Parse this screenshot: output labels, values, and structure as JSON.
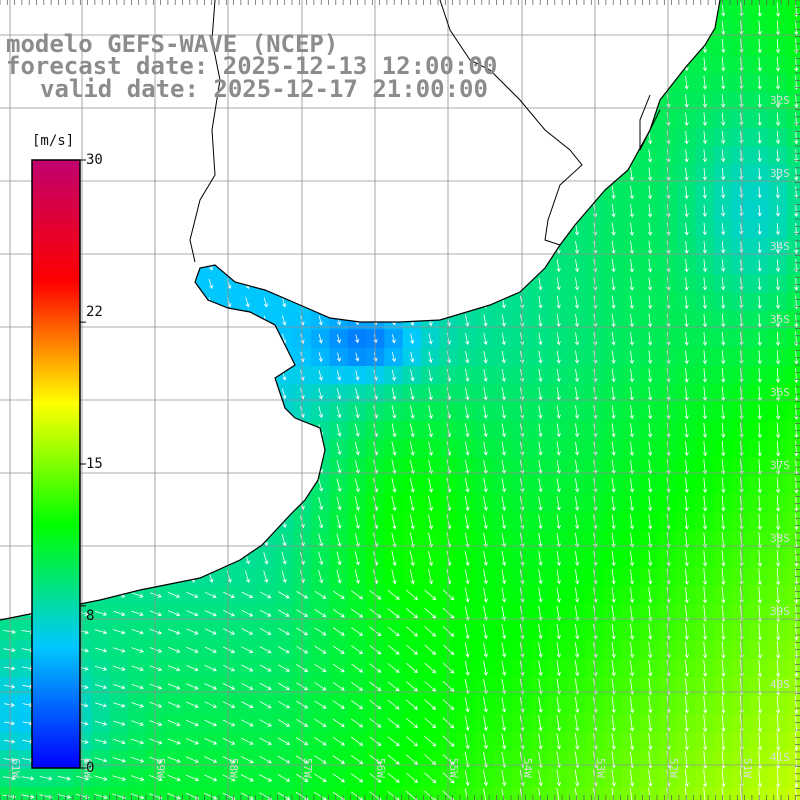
{
  "header": {
    "model": "modelo GEFS-WAVE (NCEP)",
    "forecast": "forecast date: 2025-12-13 12:00:00",
    "valid": "valid date: 2025-12-17 21:00:00"
  },
  "colorbar": {
    "unit": "[m/s]",
    "min": 0,
    "max": 30,
    "ticks": [
      "30",
      "22",
      "15",
      "8",
      "0"
    ],
    "tick_values": [
      30,
      22,
      15,
      8,
      0
    ],
    "stops": [
      "#0000ff",
      "#00c8ff",
      "#00ff00",
      "#ffff00",
      "#ff0000",
      "#c0006e"
    ]
  },
  "map": {
    "lon_range": [
      -61.5,
      -50.8
    ],
    "lat_range": [
      -41.5,
      -30.2
    ],
    "lat_labels": [
      "32S",
      "33S",
      "34S",
      "35S",
      "36S",
      "37S",
      "38S",
      "39S",
      "40S",
      "41S"
    ],
    "lon_labels": [
      "61W",
      "60W",
      "59W",
      "58W",
      "57W",
      "56W",
      "55W",
      "54W",
      "53W",
      "52W",
      "51W"
    ],
    "colors": {
      "land": "#ffffff",
      "coast": "#000000",
      "grid": "#909090",
      "arrow": "#ffffff"
    }
  }
}
